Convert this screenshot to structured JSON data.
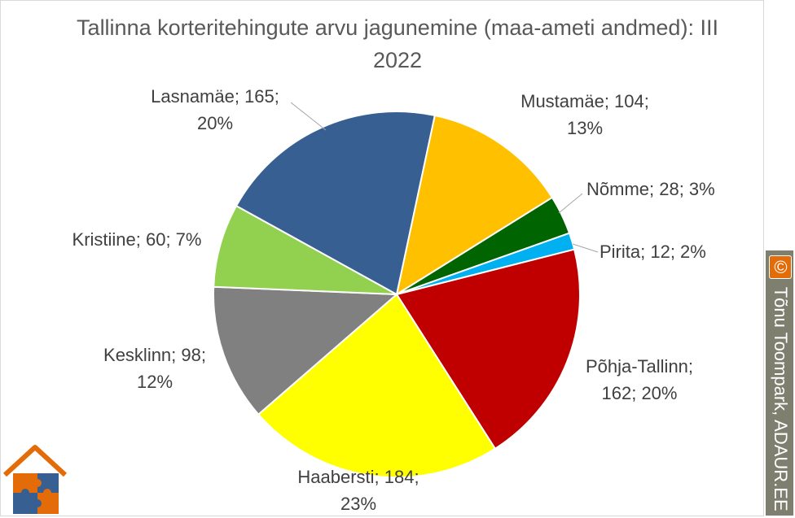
{
  "title": "Tallinna korteritehingute arvu jagunemine (maa-ameti andmed): III 2022",
  "watermark": {
    "symbol": "©",
    "text": " Tõnu Toompark, ADAUR.EE"
  },
  "logo": {
    "icon": "puzzle-house-logo-icon"
  },
  "colors": {
    "background": "#ffffff",
    "border": "#d9d9d9",
    "title": "#595959",
    "label": "#404040",
    "leader": "#a6a6a6",
    "watermark_bg": "#7f7f6f",
    "watermark_accent": "#e36c09"
  },
  "chart_data": {
    "type": "pie",
    "title": "Tallinna korteritehingute arvu jagunemine (maa-ameti andmed): III 2022",
    "start_angle_deg": 12,
    "direction": "clockwise",
    "slices": [
      {
        "name": "Mustamäe",
        "value": 104,
        "percent": "13%",
        "color": "#ffc000",
        "label_lines": [
          "Mustamäe; 104;",
          "13%"
        ]
      },
      {
        "name": "Nõmme",
        "value": 28,
        "percent": "3%",
        "color": "#006400",
        "label_lines": [
          "Nõmme; 28; 3%"
        ]
      },
      {
        "name": "Pirita",
        "value": 12,
        "percent": "2%",
        "color": "#00b0f0",
        "label_lines": [
          "Pirita; 12; 2%"
        ]
      },
      {
        "name": "Põhja-Tallinn",
        "value": 162,
        "percent": "20%",
        "color": "#c00000",
        "label_lines": [
          "Põhja-Tallinn;",
          "162; 20%"
        ]
      },
      {
        "name": "Haabersti",
        "value": 184,
        "percent": "23%",
        "color": "#ffff00",
        "label_lines": [
          "Haabersti; 184;",
          "23%"
        ]
      },
      {
        "name": "Kesklinn",
        "value": 98,
        "percent": "12%",
        "color": "#808080",
        "label_lines": [
          "Kesklinn; 98;",
          "12%"
        ]
      },
      {
        "name": "Kristiine",
        "value": 60,
        "percent": "7%",
        "color": "#92d050",
        "label_lines": [
          "Kristiine; 60; 7%"
        ]
      },
      {
        "name": "Lasnamäe",
        "value": 165,
        "percent": "20%",
        "color": "#375f91",
        "label_lines": [
          "Lasnamäe; 165;",
          "20%"
        ]
      }
    ]
  }
}
